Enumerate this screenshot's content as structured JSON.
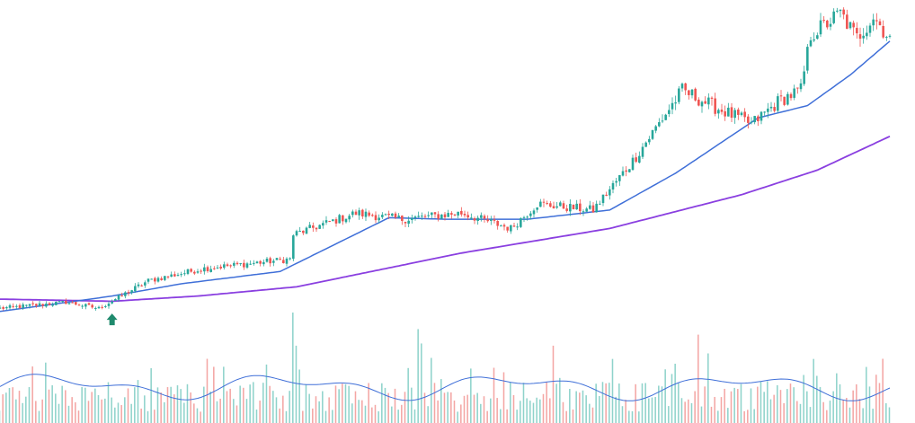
{
  "chart_data": {
    "type": "candlestick",
    "title": "",
    "xlabel": "",
    "ylabel": "",
    "grid": false,
    "legend": "none",
    "axes_visible": false,
    "price_range": [
      0,
      100
    ],
    "volume_range": [
      0,
      100
    ],
    "colors": {
      "up": "#26a69a",
      "down": "#ef5350",
      "up_volume": "#8fd3cb",
      "down_volume": "#f4a6a4",
      "ma_fast": "#3f6fd8",
      "ma_slow": "#8a3fe0",
      "volume_ma": "#3f6fd8",
      "signal_marker": "#1f8a6d"
    },
    "anchor_points": [
      {
        "i": 0,
        "p": 4.0
      },
      {
        "i": 20,
        "p": 6.0
      },
      {
        "i": 30,
        "p": 4.0
      },
      {
        "i": 45,
        "p": 13.0
      },
      {
        "i": 62,
        "p": 17.0
      },
      {
        "i": 88,
        "p": 20.0
      },
      {
        "i": 89,
        "p": 28.0
      },
      {
        "i": 108,
        "p": 35.0
      },
      {
        "i": 122,
        "p": 33.0
      },
      {
        "i": 140,
        "p": 35.0
      },
      {
        "i": 155,
        "p": 30.0
      },
      {
        "i": 163,
        "p": 38.0
      },
      {
        "i": 180,
        "p": 36.0
      },
      {
        "i": 192,
        "p": 52.0
      },
      {
        "i": 207,
        "p": 75.0
      },
      {
        "i": 216,
        "p": 70.0
      },
      {
        "i": 228,
        "p": 64.0
      },
      {
        "i": 237,
        "p": 72.0
      },
      {
        "i": 243,
        "p": 75.0
      },
      {
        "i": 246,
        "p": 93.0
      },
      {
        "i": 255,
        "p": 100.0
      },
      {
        "i": 260,
        "p": 92.0
      },
      {
        "i": 265,
        "p": 99.0
      },
      {
        "i": 270,
        "p": 92.0
      }
    ],
    "ma_fast_anchor_points": [
      {
        "i": 0,
        "p": 3.0
      },
      {
        "i": 34,
        "p": 8.0
      },
      {
        "i": 55,
        "p": 12.0
      },
      {
        "i": 85,
        "p": 16.0
      },
      {
        "i": 118,
        "p": 33.5
      },
      {
        "i": 135,
        "p": 33.0
      },
      {
        "i": 160,
        "p": 33.0
      },
      {
        "i": 185,
        "p": 36.0
      },
      {
        "i": 205,
        "p": 48.0
      },
      {
        "i": 230,
        "p": 66.0
      },
      {
        "i": 245,
        "p": 70.0
      },
      {
        "i": 258,
        "p": 80.0
      },
      {
        "i": 270,
        "p": 91.0
      }
    ],
    "ma_slow_anchor_points": [
      {
        "i": 0,
        "p": 7.0
      },
      {
        "i": 34,
        "p": 6.3
      },
      {
        "i": 60,
        "p": 8.0
      },
      {
        "i": 90,
        "p": 11.0
      },
      {
        "i": 140,
        "p": 22.0
      },
      {
        "i": 185,
        "p": 30.0
      },
      {
        "i": 225,
        "p": 41.0
      },
      {
        "i": 248,
        "p": 49.0
      },
      {
        "i": 270,
        "p": 60.0
      }
    ],
    "signal_markers": [
      {
        "i": 34,
        "type": "buy-arrow"
      }
    ],
    "volume_spikes": [
      {
        "i": 89,
        "v": 100
      },
      {
        "i": 90,
        "v": 70
      },
      {
        "i": 127,
        "v": 85
      },
      {
        "i": 128,
        "v": 72
      },
      {
        "i": 150,
        "v": 50
      },
      {
        "i": 168,
        "v": 70
      },
      {
        "i": 186,
        "v": 58
      },
      {
        "i": 212,
        "v": 80
      },
      {
        "i": 215,
        "v": 63
      },
      {
        "i": 247,
        "v": 58
      },
      {
        "i": 254,
        "v": 45
      }
    ],
    "bar_count": 271
  }
}
